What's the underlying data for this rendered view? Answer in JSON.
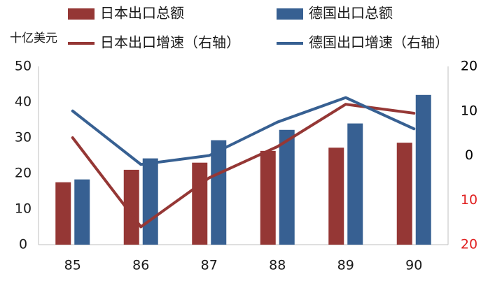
{
  "chart_data": {
    "type": "bar",
    "title": "",
    "xlabel": "",
    "ylabel": "十亿美元",
    "ylabel_right": "",
    "categories": [
      "85",
      "86",
      "87",
      "88",
      "89",
      "90"
    ],
    "ylim": [
      0,
      50
    ],
    "yticks": [
      "0",
      "10",
      "20",
      "30",
      "40",
      "50"
    ],
    "y2lim": [
      -20,
      20
    ],
    "y2ticks": [
      {
        "value": 20,
        "label": "20",
        "color": "#000000"
      },
      {
        "value": 10,
        "label": "10",
        "color": "#000000"
      },
      {
        "value": 0,
        "label": "0",
        "color": "#000000"
      },
      {
        "value": -10,
        "label": "10",
        "color": "#e02020"
      },
      {
        "value": -20,
        "label": "20",
        "color": "#e02020"
      }
    ],
    "grid": false,
    "legend_position": "top",
    "series": [
      {
        "name": "日本出口总额",
        "kind": "bar",
        "axis": "left",
        "color": "#953735",
        "values": [
          17.5,
          21,
          23,
          26.3,
          27.2,
          28.6
        ]
      },
      {
        "name": "德国出口总额",
        "kind": "bar",
        "axis": "left",
        "color": "#376092",
        "values": [
          18.3,
          24.2,
          29.3,
          32.2,
          34,
          42
        ]
      },
      {
        "name": "日本出口增速（右轴）",
        "kind": "line",
        "axis": "right",
        "color": "#953735",
        "values": [
          4,
          -16,
          -5,
          2,
          11.5,
          9.5
        ]
      },
      {
        "name": "德国出口增速（右轴）",
        "kind": "line",
        "axis": "right",
        "color": "#376092",
        "values": [
          10,
          -2,
          0,
          7.5,
          13,
          6
        ]
      }
    ]
  }
}
